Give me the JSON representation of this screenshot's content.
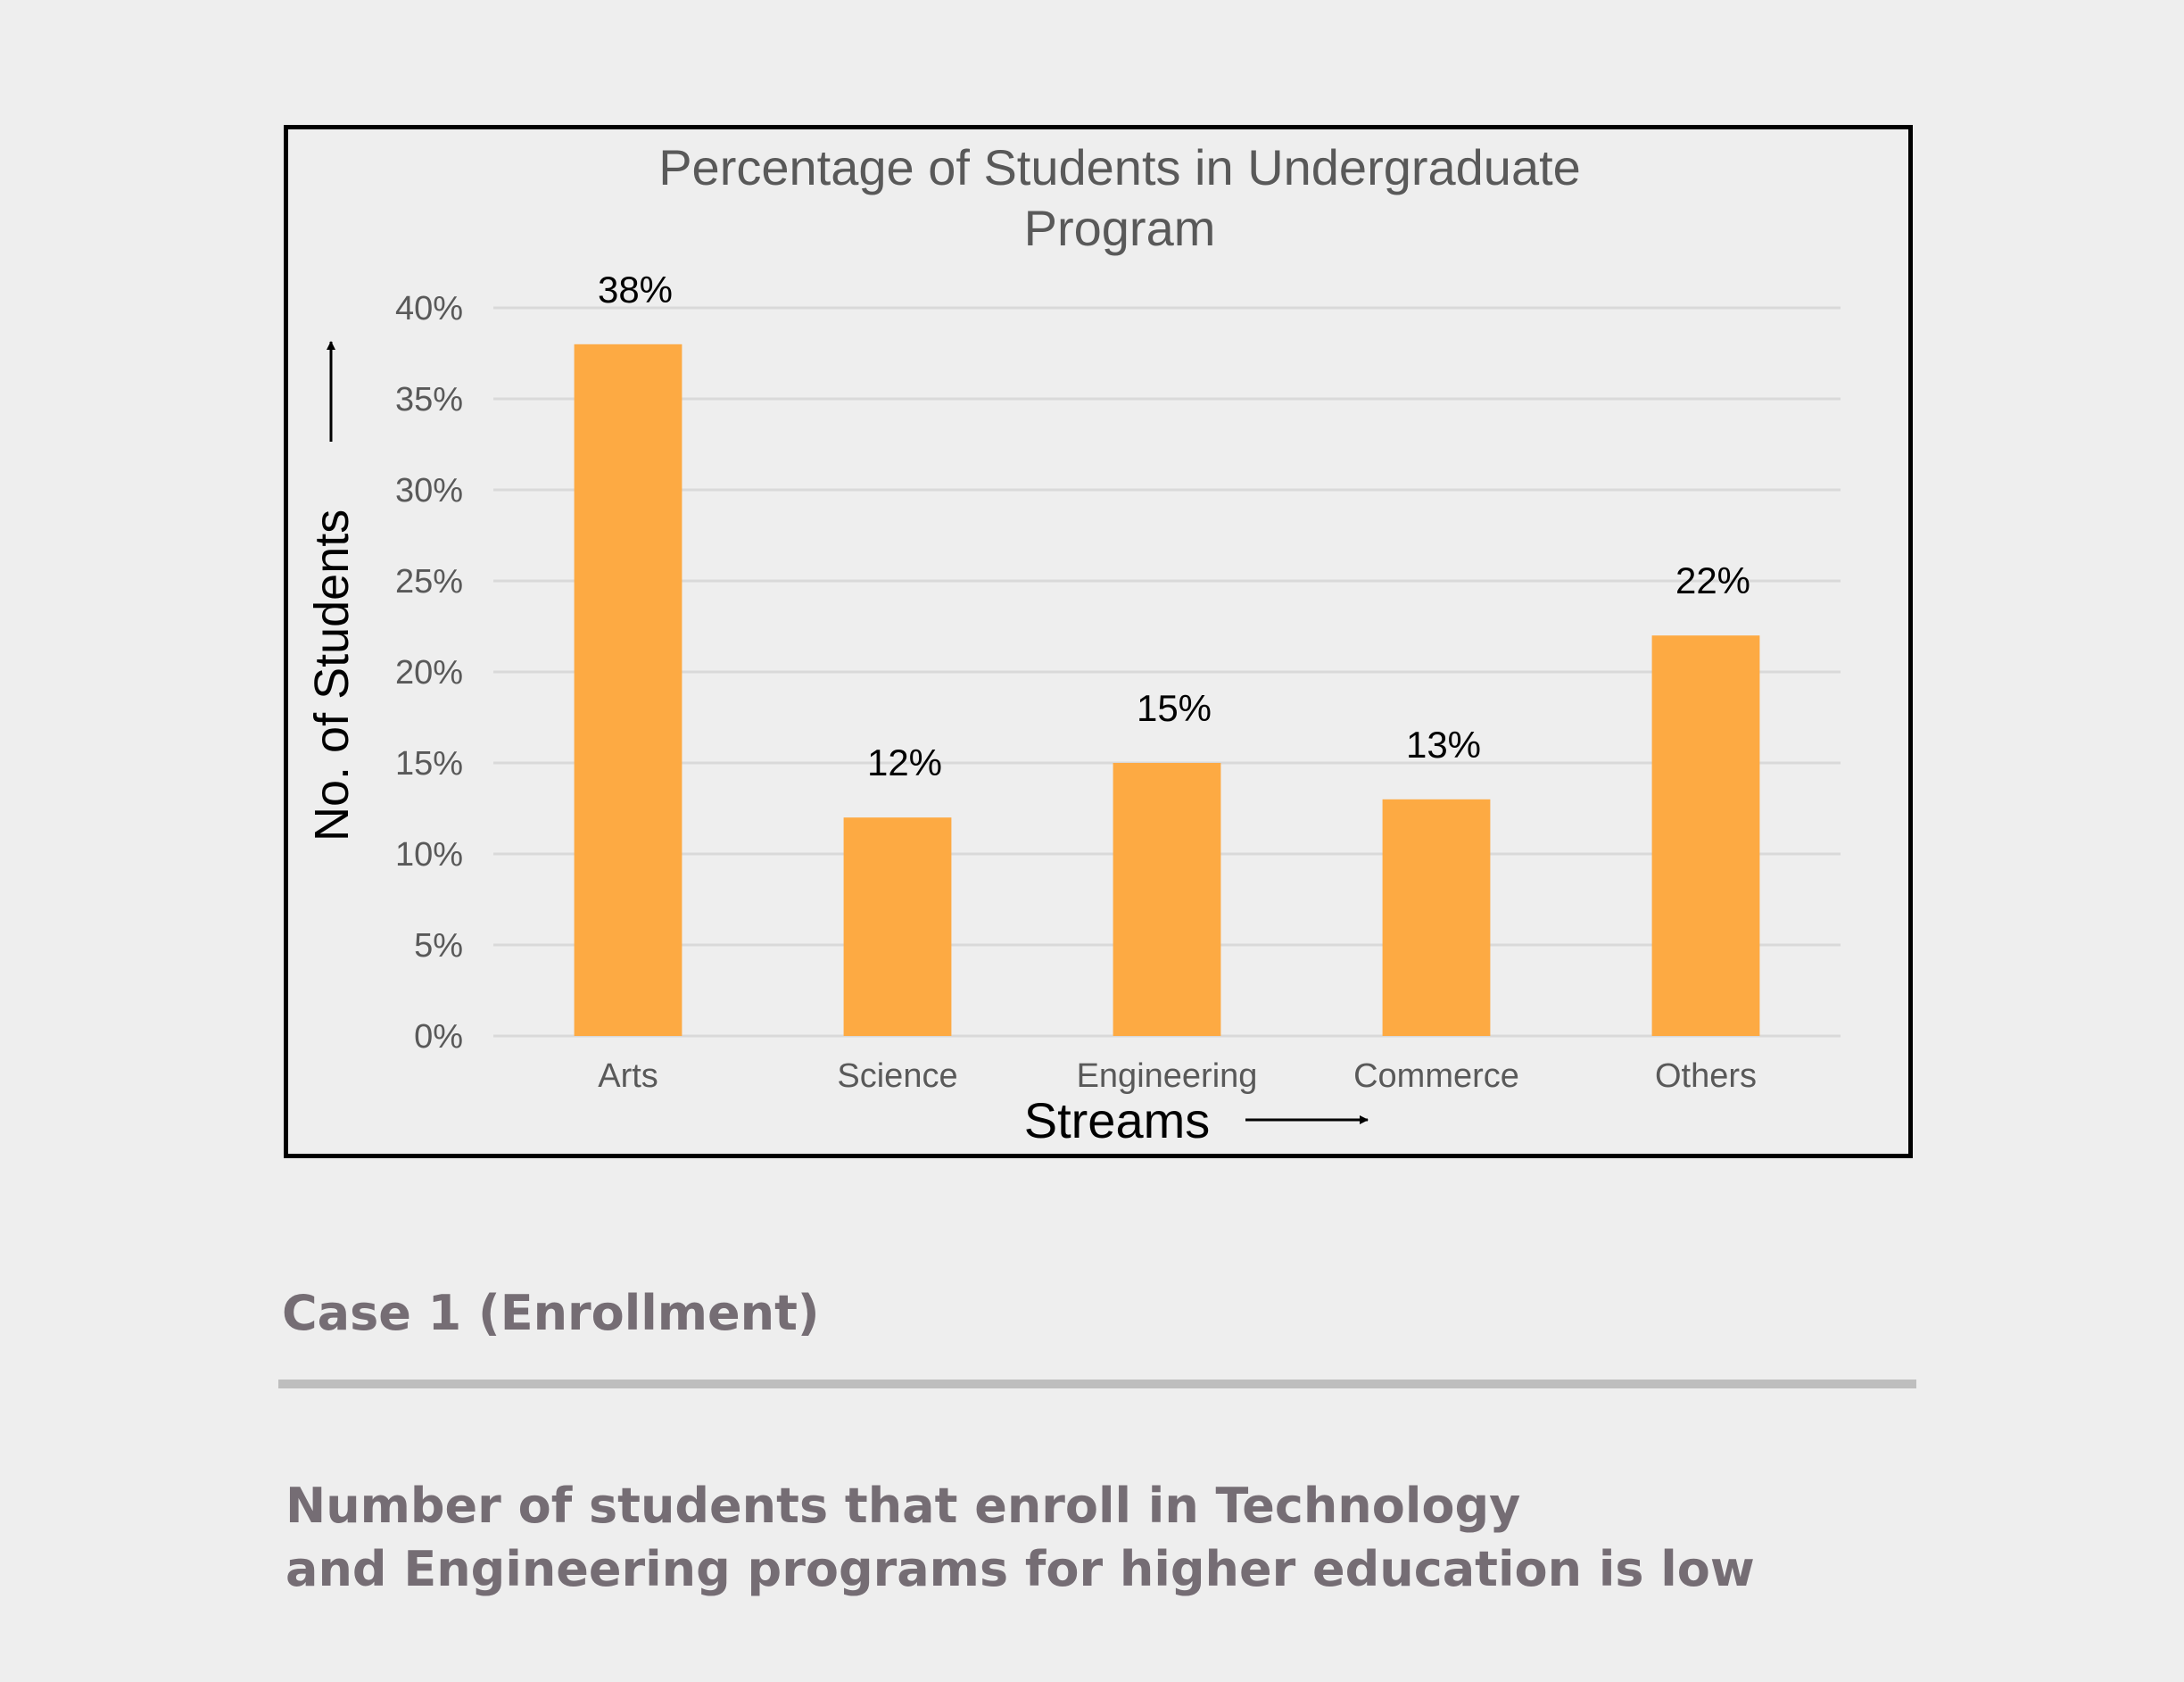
{
  "colors": {
    "bar": "#fdaa43",
    "grid": "#d9d9d9",
    "tick_text": "#595959",
    "title_text": "#595959",
    "label_text": "#000000",
    "heading_text": "#756d74"
  },
  "chart_data": {
    "type": "bar",
    "title_lines": [
      "Percentage of Students in Undergraduate",
      "Program"
    ],
    "categories": [
      "Arts",
      "Science",
      "Engineering",
      "Commerce",
      "Others"
    ],
    "values": [
      38,
      12,
      15,
      13,
      22
    ],
    "data_labels": [
      "38%",
      "12%",
      "15%",
      "13%",
      "22%"
    ],
    "yticks": [
      0,
      5,
      10,
      15,
      20,
      25,
      30,
      35,
      40
    ],
    "ytick_labels": [
      "0%",
      "5%",
      "10%",
      "15%",
      "20%",
      "25%",
      "30%",
      "35%",
      "40%"
    ],
    "ylim": [
      0,
      40
    ],
    "xlabel": "Streams",
    "ylabel": "No. of Students",
    "grid": true
  },
  "slide": {
    "heading": "Case 1 (Enrollment)",
    "body_lines": [
      "Number of students that enroll in Technology",
      "and Engineering programs for higher education is low"
    ]
  }
}
